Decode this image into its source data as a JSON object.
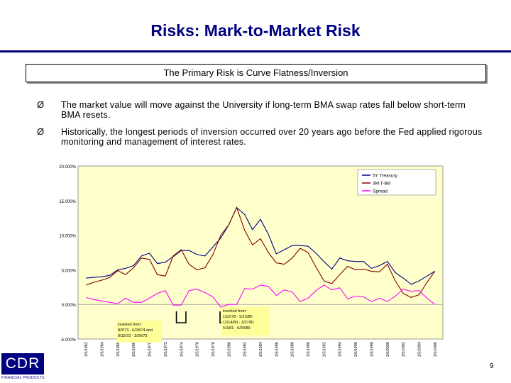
{
  "slide": {
    "title": "Risks:  Mark-to-Market Risk",
    "banner": "The Primary Risk is Curve Flatness/Inversion",
    "bullets": [
      "The market value will move against the University if long-term BMA swap rates fall below short-term BMA resets.",
      "Historically, the longest periods of inversion occurred over 20 years ago before the Fed applied rigorous monitoring and management of interest rates."
    ],
    "bullet_glyph": "Ø",
    "logo_text": "CDR",
    "logo_subtext": "FINANCIAL PRODUCTS",
    "page_number": "9"
  },
  "chart_data": {
    "type": "line",
    "title": "",
    "xlabel": "",
    "ylabel": "",
    "ylim": [
      -5,
      20
    ],
    "yticks": [
      "20.000%",
      "15.000%",
      "10.000%",
      "5.000%",
      "0.000%",
      "-5.000%"
    ],
    "x_ticks": [
      "1/5/1962",
      "1/5/1964",
      "1/5/1966",
      "1/5/1968",
      "1/5/1970",
      "1/5/1972",
      "1/5/1974",
      "1/5/1976",
      "1/5/1978",
      "1/5/1980",
      "1/5/1982",
      "1/5/1984",
      "1/5/1986",
      "1/5/1988",
      "1/5/1990",
      "1/5/1992",
      "1/5/1994",
      "1/5/1996",
      "1/5/1998",
      "1/5/2000",
      "1/5/2002",
      "1/5/2004",
      "1/5/2006"
    ],
    "x_years": [
      1962,
      1964,
      1966,
      1968,
      1970,
      1972,
      1974,
      1976,
      1978,
      1980,
      1982,
      1984,
      1986,
      1988,
      1990,
      1992,
      1994,
      1996,
      1998,
      2000,
      2002,
      2004,
      2006
    ],
    "legend": {
      "placement": "top-right",
      "items": [
        "5Y Treasury",
        "3M T-Bill",
        "Spread"
      ]
    },
    "colors": {
      "treasury": "#000080",
      "tbill": "#800000",
      "spread": "#ff00ff",
      "plot_bg": "#ffffcc",
      "annot_bg": "#ffff99"
    },
    "series": [
      {
        "name": "5Y Treasury",
        "x": [
          1962,
          1963,
          1964,
          1965,
          1966,
          1967,
          1968,
          1969,
          1970,
          1971,
          1972,
          1973,
          1974,
          1975,
          1976,
          1977,
          1978,
          1979,
          1980,
          1981,
          1982,
          1983,
          1984,
          1985,
          1986,
          1987,
          1988,
          1989,
          1990,
          1991,
          1992,
          1993,
          1994,
          1995,
          1996,
          1997,
          1998,
          1999,
          2000,
          2001,
          2002,
          2003,
          2004,
          2005,
          2006
        ],
        "values": [
          3.8,
          3.9,
          4.0,
          4.2,
          5.0,
          5.2,
          5.6,
          7.0,
          7.4,
          5.9,
          6.1,
          6.9,
          7.8,
          7.8,
          7.2,
          7.0,
          8.3,
          9.6,
          11.5,
          14.0,
          13.0,
          10.8,
          12.3,
          10.1,
          7.3,
          7.9,
          8.5,
          8.5,
          8.4,
          7.4,
          6.2,
          5.1,
          6.7,
          6.3,
          6.2,
          6.2,
          5.2,
          5.6,
          6.2,
          4.6,
          3.8,
          2.9,
          3.4,
          4.1,
          4.8
        ]
      },
      {
        "name": "3M T-Bill",
        "x": [
          1962,
          1963,
          1964,
          1965,
          1966,
          1967,
          1968,
          1969,
          1970,
          1971,
          1972,
          1973,
          1974,
          1975,
          1976,
          1977,
          1978,
          1979,
          1980,
          1981,
          1982,
          1983,
          1984,
          1985,
          1986,
          1987,
          1988,
          1989,
          1990,
          1991,
          1992,
          1993,
          1994,
          1995,
          1996,
          1997,
          1998,
          1999,
          2000,
          2001,
          2002,
          2003,
          2004,
          2005,
          2006
        ],
        "values": [
          2.8,
          3.2,
          3.5,
          3.9,
          4.9,
          4.3,
          5.3,
          6.7,
          6.5,
          4.3,
          4.1,
          7.0,
          7.9,
          5.8,
          5.0,
          5.3,
          7.2,
          10.0,
          11.5,
          14.0,
          10.7,
          8.6,
          9.5,
          7.5,
          6.0,
          5.8,
          6.7,
          8.1,
          7.5,
          5.4,
          3.4,
          3.0,
          4.3,
          5.5,
          5.0,
          5.1,
          4.8,
          4.7,
          5.8,
          3.4,
          1.6,
          1.0,
          1.4,
          3.2,
          4.8
        ]
      },
      {
        "name": "Spread",
        "x": [
          1962,
          1963,
          1964,
          1965,
          1966,
          1967,
          1968,
          1969,
          1970,
          1971,
          1972,
          1973,
          1974,
          1975,
          1976,
          1977,
          1978,
          1979,
          1980,
          1981,
          1982,
          1983,
          1984,
          1985,
          1986,
          1987,
          1988,
          1989,
          1990,
          1991,
          1992,
          1993,
          1994,
          1995,
          1996,
          1997,
          1998,
          1999,
          2000,
          2001,
          2002,
          2003,
          2004,
          2005,
          2006
        ],
        "values": [
          1.0,
          0.7,
          0.5,
          0.3,
          0.1,
          0.9,
          0.3,
          0.3,
          0.9,
          1.6,
          2.0,
          -0.1,
          -0.1,
          2.0,
          2.2,
          1.7,
          1.1,
          -0.4,
          0.0,
          0.0,
          2.3,
          2.2,
          2.8,
          2.6,
          1.3,
          2.1,
          1.8,
          0.4,
          0.9,
          2.0,
          2.8,
          2.1,
          2.4,
          0.8,
          1.2,
          1.1,
          0.4,
          0.9,
          0.4,
          1.2,
          2.2,
          1.9,
          2.0,
          0.9,
          0.0
        ]
      }
    ],
    "annotations": [
      {
        "lines": [
          "inverted from:",
          "8/3/73 - 6/28/74 and",
          "9/15/72 - 3/30/72"
        ]
      },
      {
        "lines": [
          "inverted from:",
          "12/2/78 - 5/15/80",
          "11/14/80 - 3/27/81",
          "5/1/81 - 6/30/89"
        ]
      }
    ]
  }
}
